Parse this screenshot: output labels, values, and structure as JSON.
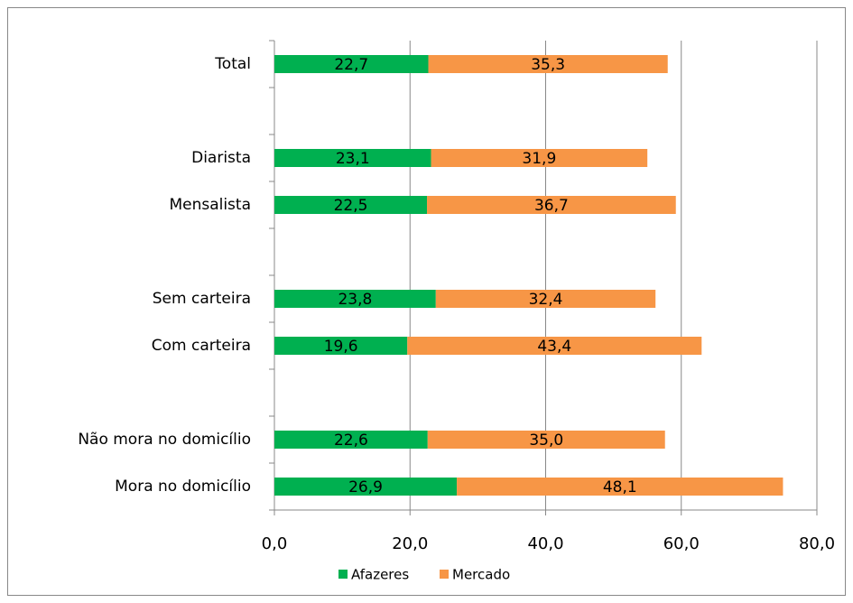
{
  "chart_data": {
    "type": "bar",
    "orientation": "horizontal",
    "stacked": true,
    "categories": [
      "Total",
      null,
      "Diarista",
      "Mensalista",
      null,
      "Sem carteira",
      "Com carteira",
      null,
      "Não mora no domicílio",
      "Mora no domicílio"
    ],
    "series": [
      {
        "name": "Afazeres",
        "color": "#00b050",
        "values": [
          22.7,
          null,
          23.1,
          22.5,
          null,
          23.8,
          19.6,
          null,
          22.6,
          26.9
        ],
        "value_labels": [
          "22,7",
          null,
          "23,1",
          "22,5",
          null,
          "23,8",
          "19,6",
          null,
          "22,6",
          "26,9"
        ]
      },
      {
        "name": "Mercado",
        "color": "#f79646",
        "values": [
          35.3,
          null,
          31.9,
          36.7,
          null,
          32.4,
          43.4,
          null,
          35.0,
          48.1
        ],
        "value_labels": [
          "35,3",
          null,
          "31,9",
          "36,7",
          null,
          "32,4",
          "43,4",
          null,
          "35,0",
          "48,1"
        ]
      }
    ],
    "xlim": [
      0,
      80
    ],
    "xticks": [
      {
        "value": 0,
        "label": "0,0"
      },
      {
        "value": 20,
        "label": "20,0"
      },
      {
        "value": 40,
        "label": "40,0"
      },
      {
        "value": 60,
        "label": "60,0"
      },
      {
        "value": 80,
        "label": "80,0"
      }
    ],
    "grid": true,
    "legend": "bottom"
  }
}
